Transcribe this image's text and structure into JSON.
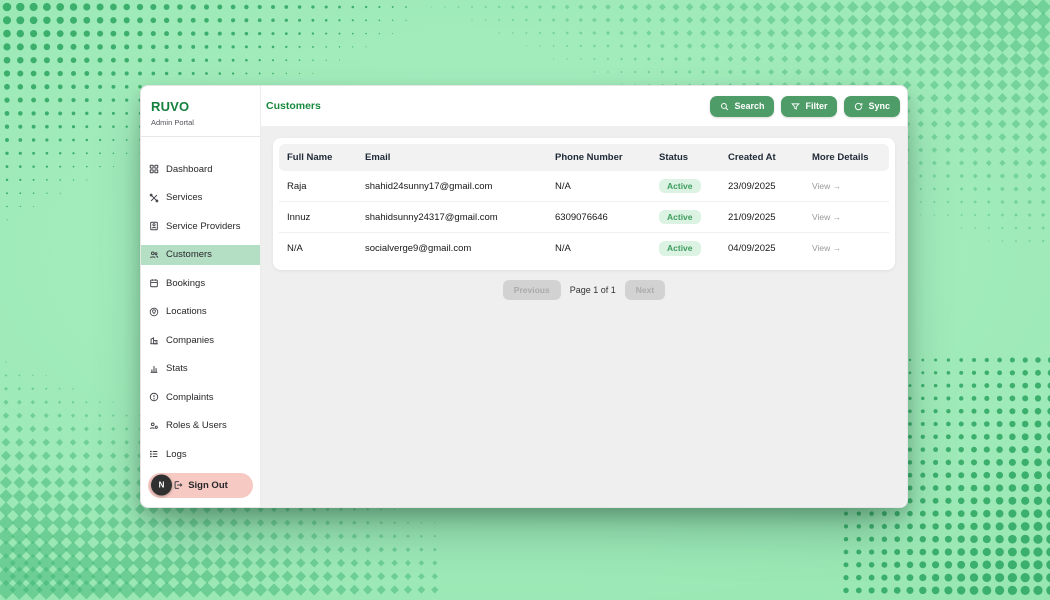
{
  "brand": {
    "name": "RUVO",
    "subtitle": "Admin Portal"
  },
  "sidebar": {
    "items": [
      {
        "label": "Dashboard",
        "icon": "grid-icon",
        "active": false
      },
      {
        "label": "Services",
        "icon": "tools-icon",
        "active": false
      },
      {
        "label": "Service Providers",
        "icon": "provider-badge-icon",
        "active": false
      },
      {
        "label": "Customers",
        "icon": "users-icon",
        "active": true
      },
      {
        "label": "Bookings",
        "icon": "calendar-icon",
        "active": false
      },
      {
        "label": "Locations",
        "icon": "map-pin-icon",
        "active": false
      },
      {
        "label": "Companies",
        "icon": "buildings-icon",
        "active": false
      },
      {
        "label": "Stats",
        "icon": "bar-chart-icon",
        "active": false
      },
      {
        "label": "Complaints",
        "icon": "alert-circle-icon",
        "active": false
      },
      {
        "label": "Roles & Users",
        "icon": "user-gear-icon",
        "active": false
      },
      {
        "label": "Logs",
        "icon": "list-icon",
        "active": false
      }
    ],
    "sign_out": {
      "label": "Sign Out",
      "icon": "logout-icon",
      "avatar_initial": "N"
    }
  },
  "header": {
    "title": "Customers",
    "buttons": [
      {
        "label": "Search",
        "icon": "search-icon"
      },
      {
        "label": "Filter",
        "icon": "filter-icon"
      },
      {
        "label": "Sync",
        "icon": "sync-icon"
      }
    ]
  },
  "table": {
    "columns": [
      "Full Name",
      "Email",
      "Phone Number",
      "Status",
      "Created At",
      "More Details"
    ],
    "rows": [
      {
        "full_name": "Raja",
        "email": "shahid24sunny17@gmail.com",
        "phone": "N/A",
        "status": "Active",
        "created_at": "23/09/2025",
        "more": "View →"
      },
      {
        "full_name": "Innuz",
        "email": "shahidsunny24317@gmail.com",
        "phone": "6309076646",
        "status": "Active",
        "created_at": "21/09/2025",
        "more": "View →"
      },
      {
        "full_name": "N/A",
        "email": "socialverge9@gmail.com",
        "phone": "N/A",
        "status": "Active",
        "created_at": "04/09/2025",
        "more": "View →"
      }
    ]
  },
  "pagination": {
    "previous_label": "Previous",
    "page_info": "Page 1 of 1",
    "next_label": "Next"
  },
  "colors": {
    "brand_green": "#15803d",
    "accent_button_green": "#4e9d68",
    "active_nav_bg": "#b5dfc5",
    "status_badge_bg": "#dcf2e3",
    "status_badge_text": "#3d9d5d",
    "sign_out_pink": "#f6cac3",
    "background_green": "#9fe8b7",
    "pattern_dot_green": "#2fa664"
  }
}
